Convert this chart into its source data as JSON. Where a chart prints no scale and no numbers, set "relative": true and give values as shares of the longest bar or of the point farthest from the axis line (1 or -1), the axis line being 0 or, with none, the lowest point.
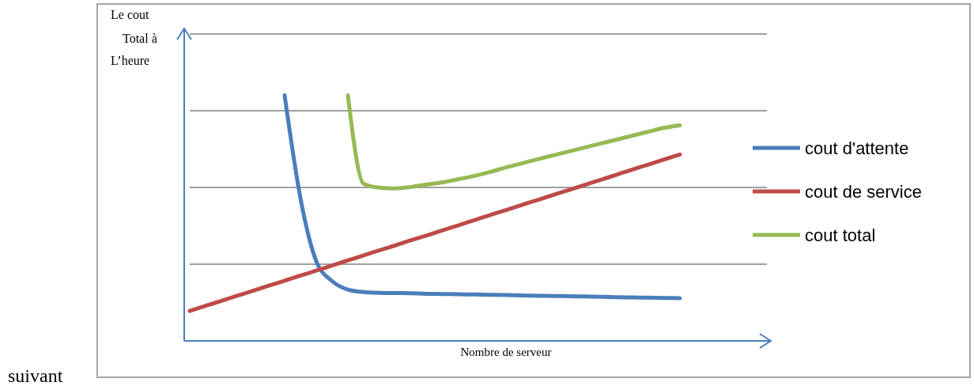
{
  "chart_data": {
    "type": "line",
    "relative": true,
    "xlabel": "Nombre de serveur",
    "ylabel": "Le cout Total à L’heure",
    "grid": "y",
    "legend": "right",
    "line_style": "solid",
    "marker": "none",
    "annotations": [
      "suivant"
    ],
    "categories": [
      null,
      null,
      null,
      null,
      null,
      null,
      null,
      null,
      null,
      null,
      null,
      null,
      null,
      null,
      null,
      null,
      null,
      null,
      null,
      null,
      null,
      null,
      null,
      null,
      null,
      null,
      null,
      null,
      null,
      null,
      null,
      null
    ],
    "series": [
      {
        "name": "cout d'attente",
        "color": "#4a7ebb",
        "values": [
          null,
          null,
          null,
          null,
          null,
          null,
          1.0,
          0.582,
          0.325,
          0.244,
          0.209,
          0.199,
          0.196,
          0.195,
          0.194,
          0.192,
          0.191,
          0.19,
          0.189,
          0.188,
          0.187,
          0.185,
          0.184,
          0.183,
          0.182,
          0.181,
          0.18,
          0.178,
          0.177,
          0.176,
          0.175,
          0.174
        ]
      },
      {
        "name": "cout de service",
        "color": "#be4b48",
        "values": [
          0.122,
          0.143,
          0.163,
          0.184,
          0.204,
          0.225,
          0.245,
          0.266,
          0.286,
          0.307,
          0.328,
          0.348,
          0.369,
          0.389,
          0.41,
          0.43,
          0.451,
          0.471,
          0.492,
          0.513,
          0.533,
          0.554,
          0.574,
          0.595,
          0.615,
          0.636,
          0.656,
          0.677,
          0.698,
          0.718,
          0.739,
          0.759
        ]
      },
      {
        "name": "cout total",
        "color": "#98b954",
        "values": [
          null,
          null,
          null,
          null,
          null,
          null,
          null,
          null,
          null,
          null,
          1.0,
          0.64,
          0.624,
          0.621,
          0.627,
          0.637,
          0.646,
          0.659,
          0.672,
          0.688,
          0.707,
          0.723,
          0.74,
          0.756,
          0.772,
          0.788,
          0.804,
          0.82,
          0.836,
          0.852,
          0.868,
          0.878
        ]
      }
    ]
  }
}
